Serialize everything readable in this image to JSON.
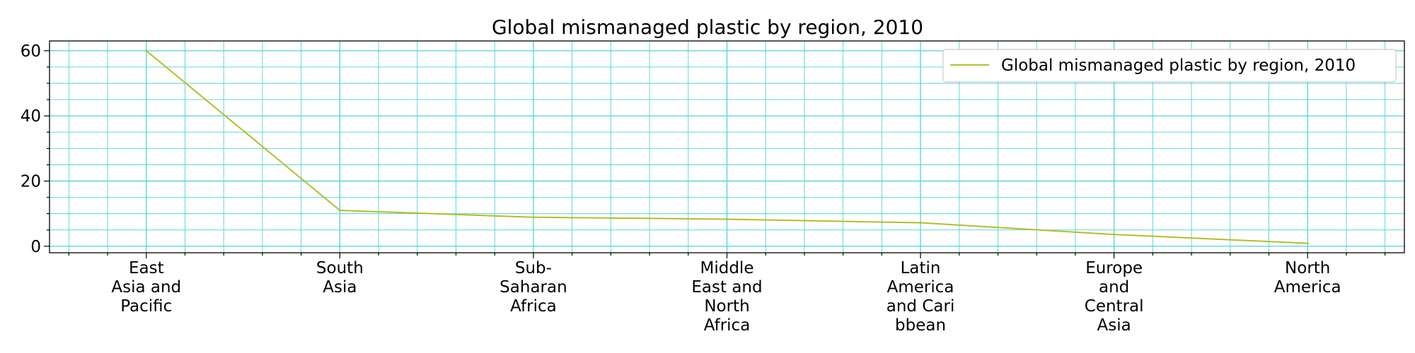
{
  "chart_data": {
    "type": "line",
    "title": "Global mismanaged plastic by region, 2010",
    "xlabel": "",
    "ylabel": "",
    "categories": [
      "East Asia and Pacific",
      "South Asia",
      "Sub-Saharan Africa",
      "Middle East and North Africa",
      "Latin America and Caribbean",
      "Europe and Central Asia",
      "North America"
    ],
    "category_display": [
      [
        "East",
        "Asia and",
        "Pacific"
      ],
      [
        "South",
        "Asia"
      ],
      [
        "Sub-",
        "Saharan",
        "Africa"
      ],
      [
        "Middle",
        "East and",
        "North",
        "Africa"
      ],
      [
        "Latin",
        "America",
        "and Cari",
        "bbean"
      ],
      [
        "Europe",
        "and",
        "Central",
        "Asia"
      ],
      [
        "North",
        "America"
      ]
    ],
    "series": [
      {
        "name": "Global mismanaged plastic by region, 2010",
        "values": [
          60.0,
          11.0,
          8.9,
          8.3,
          7.2,
          3.6,
          0.9
        ],
        "color": "#b5bd2b"
      }
    ],
    "ylim": [
      -2,
      63
    ],
    "yticks": [
      0,
      20,
      40,
      60
    ],
    "grid": true,
    "grid_color": "#4dd4d8",
    "legend_position": "top-right"
  }
}
